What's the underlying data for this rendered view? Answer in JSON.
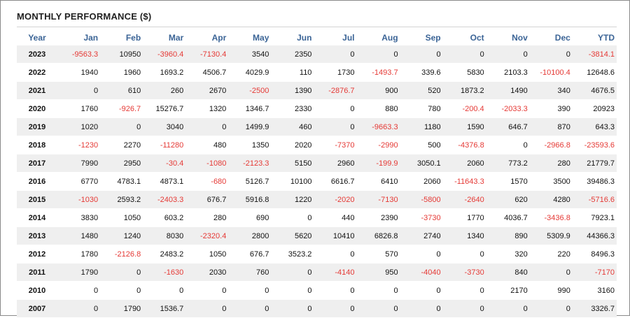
{
  "title": "MONTHLY PERFORMANCE ($)",
  "colors": {
    "header_text": "#3b6496",
    "negative": "#e53935",
    "stripe": "#efefef"
  },
  "chart_data": {
    "type": "table",
    "columns": [
      "Year",
      "Jan",
      "Feb",
      "Mar",
      "Apr",
      "May",
      "Jun",
      "Jul",
      "Aug",
      "Sep",
      "Oct",
      "Nov",
      "Dec",
      "YTD"
    ],
    "rows": [
      [
        "2023",
        "-9563.3",
        "10950",
        "-3960.4",
        "-7130.4",
        "3540",
        "2350",
        "0",
        "0",
        "0",
        "0",
        "0",
        "0",
        "-3814.1"
      ],
      [
        "2022",
        "1940",
        "1960",
        "1693.2",
        "4506.7",
        "4029.9",
        "110",
        "1730",
        "-1493.7",
        "339.6",
        "5830",
        "2103.3",
        "-10100.4",
        "12648.6"
      ],
      [
        "2021",
        "0",
        "610",
        "260",
        "2670",
        "-2500",
        "1390",
        "-2876.7",
        "900",
        "520",
        "1873.2",
        "1490",
        "340",
        "4676.5"
      ],
      [
        "2020",
        "1760",
        "-926.7",
        "15276.7",
        "1320",
        "1346.7",
        "2330",
        "0",
        "880",
        "780",
        "-200.4",
        "-2033.3",
        "390",
        "20923"
      ],
      [
        "2019",
        "1020",
        "0",
        "3040",
        "0",
        "1499.9",
        "460",
        "0",
        "-9663.3",
        "1180",
        "1590",
        "646.7",
        "870",
        "643.3"
      ],
      [
        "2018",
        "-1230",
        "2270",
        "-11280",
        "480",
        "1350",
        "2020",
        "-7370",
        "-2990",
        "500",
        "-4376.8",
        "0",
        "-2966.8",
        "-23593.6"
      ],
      [
        "2017",
        "7990",
        "2950",
        "-30.4",
        "-1080",
        "-2123.3",
        "5150",
        "2960",
        "-199.9",
        "3050.1",
        "2060",
        "773.2",
        "280",
        "21779.7"
      ],
      [
        "2016",
        "6770",
        "4783.1",
        "4873.1",
        "-680",
        "5126.7",
        "10100",
        "6616.7",
        "6410",
        "2060",
        "-11643.3",
        "1570",
        "3500",
        "39486.3"
      ],
      [
        "2015",
        "-1030",
        "2593.2",
        "-2403.3",
        "676.7",
        "5916.8",
        "1220",
        "-2020",
        "-7130",
        "-5800",
        "-2640",
        "620",
        "4280",
        "-5716.6"
      ],
      [
        "2014",
        "3830",
        "1050",
        "603.2",
        "280",
        "690",
        "0",
        "440",
        "2390",
        "-3730",
        "1770",
        "4036.7",
        "-3436.8",
        "7923.1"
      ],
      [
        "2013",
        "1480",
        "1240",
        "8030",
        "-2320.4",
        "2800",
        "5620",
        "10410",
        "6826.8",
        "2740",
        "1340",
        "890",
        "5309.9",
        "44366.3"
      ],
      [
        "2012",
        "1780",
        "-2126.8",
        "2483.2",
        "1050",
        "676.7",
        "3523.2",
        "0",
        "570",
        "0",
        "0",
        "320",
        "220",
        "8496.3"
      ],
      [
        "2011",
        "1790",
        "0",
        "-1630",
        "2030",
        "760",
        "0",
        "-4140",
        "950",
        "-4040",
        "-3730",
        "840",
        "0",
        "-7170"
      ],
      [
        "2010",
        "0",
        "0",
        "0",
        "0",
        "0",
        "0",
        "0",
        "0",
        "0",
        "0",
        "2170",
        "990",
        "3160"
      ],
      [
        "2007",
        "0",
        "1790",
        "1536.7",
        "0",
        "0",
        "0",
        "0",
        "0",
        "0",
        "0",
        "0",
        "0",
        "3326.7"
      ]
    ]
  }
}
